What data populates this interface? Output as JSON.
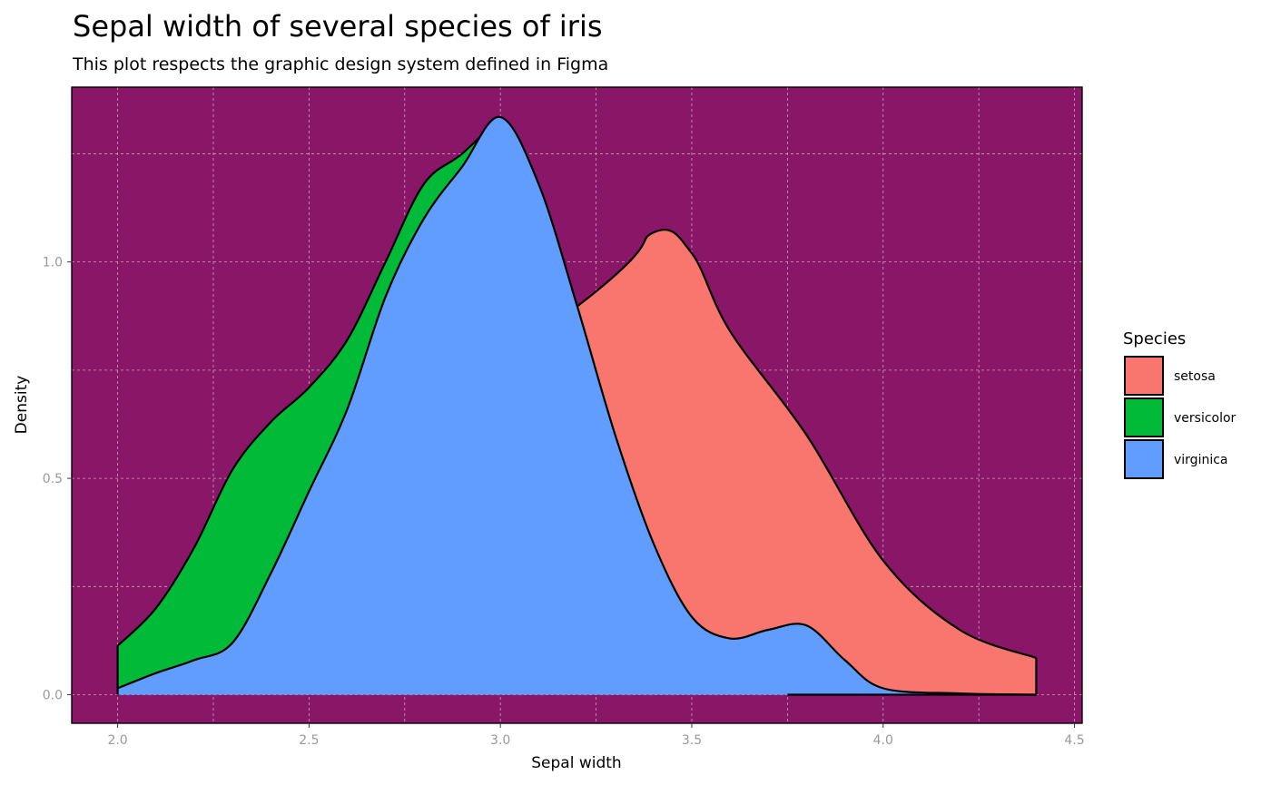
{
  "chart_data": {
    "type": "area",
    "title": "Sepal width of several species of iris",
    "subtitle": "This plot respects the graphic design system defined in Figma",
    "xlabel": "Sepal width",
    "ylabel": "Density",
    "xlim": [
      1.88,
      4.52
    ],
    "ylim": [
      -0.066,
      1.404
    ],
    "xticks": [
      2.0,
      2.5,
      3.0,
      3.5,
      4.0,
      4.5
    ],
    "yticks": [
      0.0,
      0.5,
      1.0
    ],
    "xticklabels": [
      "2.0",
      "2.5",
      "3.0",
      "3.5",
      "4.0",
      "4.5"
    ],
    "yticklabels": [
      "0.0",
      "0.5",
      "1.0"
    ],
    "stacked": true,
    "grid": true,
    "panel_background": "#8a1668",
    "grid_color": "#c9a3bd",
    "outline_color": "#000000",
    "legend": {
      "title": "Species",
      "position": "right"
    },
    "series": [
      {
        "name": "setosa",
        "color": "#f8766d",
        "x": [
          2.0,
          3.2,
          3.4,
          3.5,
          3.6,
          3.8,
          4.0,
          4.2,
          4.4
        ],
        "y": [
          0.0,
          0.0,
          0.0,
          0.0,
          0.0,
          0.0,
          0.0,
          0.0,
          0.0
        ],
        "top": [
          0.113,
          0.897,
          1.068,
          1.02,
          0.84,
          0.6,
          0.31,
          0.15,
          0.085
        ]
      },
      {
        "name": "versicolor",
        "color": "#00ba38",
        "x": [
          2.0,
          2.1,
          2.2,
          2.3,
          2.4,
          2.5,
          2.6,
          2.7,
          2.8,
          2.9,
          3.0
        ],
        "top": [
          0.113,
          0.2,
          0.34,
          0.52,
          0.63,
          0.71,
          0.82,
          1.0,
          1.18,
          1.25,
          1.335
        ]
      },
      {
        "name": "virginica",
        "color": "#619cff",
        "x": [
          2.0,
          2.1,
          2.2,
          2.3,
          2.4,
          2.5,
          2.6,
          2.7,
          2.8,
          2.9,
          3.0,
          3.1,
          3.2,
          3.3,
          3.4,
          3.5,
          3.6,
          3.7,
          3.8,
          3.9,
          4.0,
          4.2,
          4.4
        ],
        "top": [
          0.015,
          0.05,
          0.08,
          0.12,
          0.28,
          0.47,
          0.66,
          0.92,
          1.1,
          1.22,
          1.335,
          1.18,
          0.9,
          0.6,
          0.35,
          0.18,
          0.13,
          0.15,
          0.16,
          0.08,
          0.015,
          0.003,
          0.0
        ]
      }
    ]
  }
}
